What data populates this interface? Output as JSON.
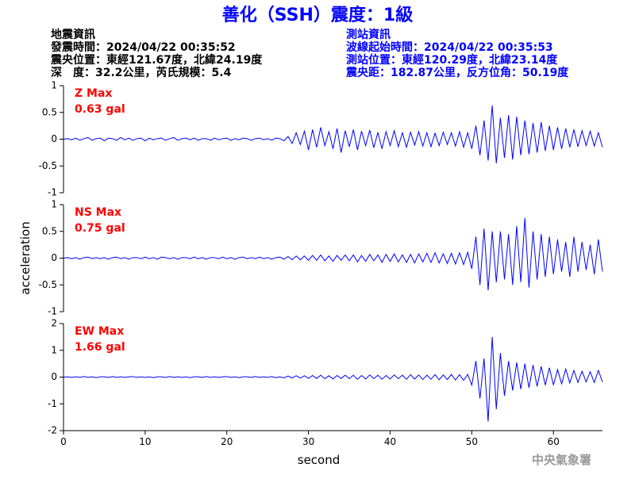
{
  "title": "善化（SSH）震度：1級",
  "station_info_left": [
    "地震資訊",
    "發震時間：2024/04/22 00:35:52",
    "震央位置：東經121.67度，北緯24.19度",
    "深　度：32.2公里，芮氏規模：5.4"
  ],
  "station_info_right": [
    "測站資訊",
    "波線起始時間：2024/04/22 00:35:53",
    "測站位置：東經120.29度，北緯23.14度",
    "震央距：182.87公里，反方位角：50.19度"
  ],
  "footer": "中央氣象署",
  "chart_data": [
    {
      "type": "line",
      "label": "Z Max",
      "max_label": "0.63 gal",
      "color": "#0000ff",
      "xlim": [
        0,
        66
      ],
      "ylim": [
        -1,
        1
      ],
      "yticks": [
        -1,
        -0.5,
        0,
        0.5,
        1
      ],
      "x": [
        0,
        0.5,
        1,
        1.5,
        2,
        2.5,
        3,
        3.5,
        4,
        4.5,
        5,
        5.5,
        6,
        6.5,
        7,
        7.5,
        8,
        8.5,
        9,
        9.5,
        10,
        10.5,
        11,
        11.5,
        12,
        12.5,
        13,
        13.5,
        14,
        14.5,
        15,
        15.5,
        16,
        16.5,
        17,
        17.5,
        18,
        18.5,
        19,
        19.5,
        20,
        20.5,
        21,
        21.5,
        22,
        22.5,
        23,
        23.5,
        24,
        24.5,
        25,
        25.5,
        26,
        26.5,
        27,
        27.5,
        28,
        28.5,
        29,
        29.5,
        30,
        30.5,
        31,
        31.5,
        32,
        32.5,
        33,
        33.5,
        34,
        34.5,
        35,
        35.5,
        36,
        36.5,
        37,
        37.5,
        38,
        38.5,
        39,
        39.5,
        40,
        40.5,
        41,
        41.5,
        42,
        42.5,
        43,
        43.5,
        44,
        44.5,
        45,
        45.5,
        46,
        46.5,
        47,
        47.5,
        48,
        48.5,
        49,
        49.5,
        50,
        50.5,
        51,
        51.5,
        52,
        52.5,
        53,
        53.5,
        54,
        54.5,
        55,
        55.5,
        56,
        56.5,
        57,
        57.5,
        58,
        58.5,
        59,
        59.5,
        60,
        60.5,
        61,
        61.5,
        62,
        62.5,
        63,
        63.5,
        64,
        64.5,
        65,
        65.5,
        66
      ],
      "values": [
        0,
        0.01,
        -0.01,
        0.02,
        -0.02,
        0.01,
        0.03,
        -0.02,
        0.01,
        0.02,
        -0.03,
        0.02,
        0.01,
        -0.02,
        0.03,
        -0.01,
        0.02,
        -0.02,
        0.01,
        0.02,
        -0.03,
        0.02,
        -0.01,
        0.01,
        0.02,
        -0.02,
        0.01,
        0.03,
        -0.02,
        0.01,
        0.02,
        -0.01,
        0.02,
        -0.02,
        0.01,
        0.01,
        -0.02,
        0.02,
        -0.01,
        0.01,
        0.02,
        -0.02,
        0.01,
        -0.01,
        0.02,
        0.01,
        -0.02,
        0.01,
        0.02,
        -0.01,
        0.01,
        -0.02,
        0.02,
        0.01,
        -0.03,
        0.05,
        -0.08,
        0.12,
        -0.1,
        0.15,
        -0.2,
        0.18,
        -0.15,
        0.22,
        -0.12,
        0.14,
        -0.18,
        0.2,
        -0.25,
        0.16,
        -0.14,
        0.18,
        -0.2,
        0.15,
        -0.12,
        0.17,
        -0.16,
        0.13,
        -0.18,
        0.14,
        -0.12,
        0.16,
        -0.14,
        0.12,
        -0.15,
        0.13,
        -0.11,
        0.14,
        -0.13,
        0.12,
        -0.14,
        0.11,
        -0.12,
        0.13,
        -0.1,
        0.12,
        -0.13,
        0.14,
        -0.15,
        0.12,
        -0.18,
        0.25,
        -0.3,
        0.35,
        -0.4,
        0.63,
        -0.45,
        0.4,
        -0.35,
        0.45,
        -0.38,
        0.42,
        -0.3,
        0.35,
        -0.28,
        0.3,
        -0.25,
        0.32,
        -0.22,
        0.25,
        -0.2,
        0.22,
        -0.18,
        0.2,
        -0.15,
        0.18,
        -0.14,
        0.16,
        -0.12,
        0.15,
        -0.13,
        0.12,
        -0.15
      ]
    },
    {
      "type": "line",
      "label": "NS Max",
      "max_label": "0.75 gal",
      "color": "#0000ff",
      "ylabel": "acceleration",
      "xlim": [
        0,
        66
      ],
      "ylim": [
        -1,
        1
      ],
      "yticks": [
        -1,
        -0.5,
        0,
        0.5,
        1
      ],
      "x": [
        0,
        0.5,
        1,
        1.5,
        2,
        2.5,
        3,
        3.5,
        4,
        4.5,
        5,
        5.5,
        6,
        6.5,
        7,
        7.5,
        8,
        8.5,
        9,
        9.5,
        10,
        10.5,
        11,
        11.5,
        12,
        12.5,
        13,
        13.5,
        14,
        14.5,
        15,
        15.5,
        16,
        16.5,
        17,
        17.5,
        18,
        18.5,
        19,
        19.5,
        20,
        20.5,
        21,
        21.5,
        22,
        22.5,
        23,
        23.5,
        24,
        24.5,
        25,
        25.5,
        26,
        26.5,
        27,
        27.5,
        28,
        28.5,
        29,
        29.5,
        30,
        30.5,
        31,
        31.5,
        32,
        32.5,
        33,
        33.5,
        34,
        34.5,
        35,
        35.5,
        36,
        36.5,
        37,
        37.5,
        38,
        38.5,
        39,
        39.5,
        40,
        40.5,
        41,
        41.5,
        42,
        42.5,
        43,
        43.5,
        44,
        44.5,
        45,
        45.5,
        46,
        46.5,
        47,
        47.5,
        48,
        48.5,
        49,
        49.5,
        50,
        50.5,
        51,
        51.5,
        52,
        52.5,
        53,
        53.5,
        54,
        54.5,
        55,
        55.5,
        56,
        56.5,
        57,
        57.5,
        58,
        58.5,
        59,
        59.5,
        60,
        60.5,
        61,
        61.5,
        62,
        62.5,
        63,
        63.5,
        64,
        64.5,
        65,
        65.5,
        66
      ],
      "values": [
        0,
        0.01,
        -0.01,
        0.01,
        -0.02,
        0.01,
        0.02,
        -0.01,
        0.01,
        -0.01,
        0.01,
        -0.02,
        0.01,
        0.02,
        -0.01,
        0.01,
        -0.02,
        0.01,
        0.01,
        -0.01,
        0.02,
        -0.01,
        0.01,
        -0.02,
        0.02,
        0.01,
        -0.01,
        0.01,
        -0.02,
        0.01,
        0.01,
        -0.01,
        0.02,
        -0.01,
        0.01,
        -0.02,
        0.01,
        0.01,
        -0.01,
        0.02,
        -0.01,
        0.01,
        -0.02,
        0.01,
        0.02,
        -0.01,
        0.01,
        -0.01,
        0.02,
        -0.01,
        0.01,
        -0.02,
        0.01,
        0.02,
        -0.02,
        0.03,
        -0.03,
        0.04,
        -0.03,
        0.04,
        -0.04,
        0.05,
        -0.04,
        0.06,
        -0.05,
        0.04,
        -0.06,
        0.05,
        -0.04,
        0.06,
        -0.05,
        0.06,
        -0.07,
        0.05,
        -0.06,
        0.07,
        -0.05,
        0.06,
        -0.08,
        0.07,
        -0.06,
        0.08,
        -0.07,
        0.06,
        -0.08,
        0.07,
        -0.09,
        0.08,
        -0.07,
        0.09,
        -0.08,
        0.1,
        -0.09,
        0.08,
        -0.1,
        0.09,
        -0.11,
        0.1,
        -0.12,
        0.11,
        -0.2,
        0.4,
        -0.5,
        0.55,
        -0.6,
        0.5,
        -0.45,
        0.5,
        -0.4,
        0.45,
        -0.5,
        0.6,
        -0.45,
        0.75,
        -0.55,
        0.5,
        -0.4,
        0.45,
        -0.35,
        0.4,
        -0.3,
        0.35,
        -0.25,
        0.3,
        -0.35,
        0.4,
        -0.25,
        0.3,
        -0.22,
        0.25,
        -0.3,
        0.35,
        -0.25
      ]
    },
    {
      "type": "line",
      "label": "EW Max",
      "max_label": "1.66 gal",
      "color": "#0000ff",
      "xlabel": "second",
      "xlim": [
        0,
        66
      ],
      "xticks": [
        0,
        10,
        20,
        30,
        40,
        50,
        60
      ],
      "ylim": [
        -2,
        2
      ],
      "yticks": [
        -2,
        -1,
        0,
        1,
        2
      ],
      "x": [
        0,
        0.5,
        1,
        1.5,
        2,
        2.5,
        3,
        3.5,
        4,
        4.5,
        5,
        5.5,
        6,
        6.5,
        7,
        7.5,
        8,
        8.5,
        9,
        9.5,
        10,
        10.5,
        11,
        11.5,
        12,
        12.5,
        13,
        13.5,
        14,
        14.5,
        15,
        15.5,
        16,
        16.5,
        17,
        17.5,
        18,
        18.5,
        19,
        19.5,
        20,
        20.5,
        21,
        21.5,
        22,
        22.5,
        23,
        23.5,
        24,
        24.5,
        25,
        25.5,
        26,
        26.5,
        27,
        27.5,
        28,
        28.5,
        29,
        29.5,
        30,
        30.5,
        31,
        31.5,
        32,
        32.5,
        33,
        33.5,
        34,
        34.5,
        35,
        35.5,
        36,
        36.5,
        37,
        37.5,
        38,
        38.5,
        39,
        39.5,
        40,
        40.5,
        41,
        41.5,
        42,
        42.5,
        43,
        43.5,
        44,
        44.5,
        45,
        45.5,
        46,
        46.5,
        47,
        47.5,
        48,
        48.5,
        49,
        49.5,
        50,
        50.5,
        51,
        51.5,
        52,
        52.5,
        53,
        53.5,
        54,
        54.5,
        55,
        55.5,
        56,
        56.5,
        57,
        57.5,
        58,
        58.5,
        59,
        59.5,
        60,
        60.5,
        61,
        61.5,
        62,
        62.5,
        63,
        63.5,
        64,
        64.5,
        65,
        65.5,
        66
      ],
      "values": [
        0,
        0.01,
        -0.01,
        0.01,
        -0.01,
        0.02,
        -0.01,
        0.01,
        -0.02,
        0.01,
        0.01,
        -0.01,
        0.02,
        -0.01,
        0.01,
        -0.01,
        0.01,
        0.02,
        -0.01,
        0.01,
        -0.01,
        0.01,
        -0.02,
        0.01,
        0.01,
        -0.01,
        0.02,
        -0.01,
        0.01,
        -0.01,
        0.01,
        -0.02,
        0.01,
        0.01,
        -0.01,
        0.02,
        -0.01,
        0.01,
        -0.01,
        0.01,
        0.02,
        -0.01,
        0.01,
        -0.02,
        0.01,
        0.01,
        -0.01,
        0.02,
        -0.01,
        0.01,
        -0.01,
        0.02,
        -0.02,
        0.01,
        -0.03,
        0.04,
        -0.03,
        0.05,
        -0.04,
        0.05,
        -0.05,
        0.06,
        -0.05,
        0.07,
        -0.06,
        0.05,
        -0.07,
        0.06,
        -0.05,
        0.07,
        -0.06,
        0.07,
        -0.08,
        0.06,
        -0.07,
        0.08,
        -0.06,
        0.07,
        -0.08,
        0.06,
        -0.07,
        0.08,
        -0.06,
        0.07,
        -0.08,
        0.09,
        -0.07,
        0.08,
        -0.09,
        0.07,
        -0.08,
        0.09,
        -0.1,
        0.08,
        -0.09,
        0.1,
        -0.11,
        0.09,
        -0.12,
        0.1,
        -0.3,
        0.6,
        -0.8,
        0.7,
        -1.66,
        1.5,
        -1.2,
        0.9,
        -0.7,
        0.6,
        -0.5,
        0.55,
        -0.45,
        0.5,
        -0.4,
        0.45,
        -0.35,
        0.4,
        -0.3,
        0.35,
        -0.3,
        0.28,
        -0.25,
        0.3,
        -0.22,
        0.25,
        -0.2,
        0.22,
        -0.18,
        0.2,
        -0.2,
        0.25,
        -0.18
      ]
    }
  ]
}
